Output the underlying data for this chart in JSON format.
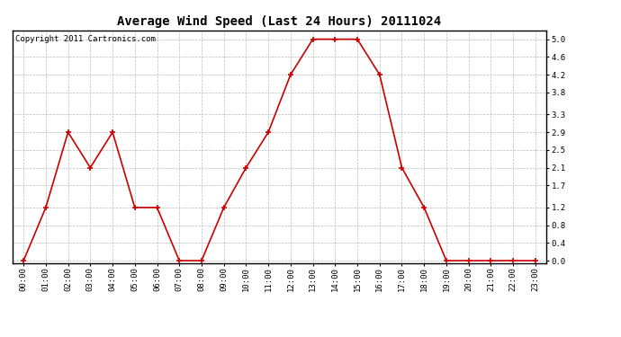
{
  "title": "Average Wind Speed (Last 24 Hours) 20111024",
  "copyright_text": "Copyright 2011 Cartronics.com",
  "x_labels": [
    "00:00",
    "01:00",
    "02:00",
    "03:00",
    "04:00",
    "05:00",
    "06:00",
    "07:00",
    "08:00",
    "09:00",
    "10:00",
    "11:00",
    "12:00",
    "13:00",
    "14:00",
    "15:00",
    "16:00",
    "17:00",
    "18:00",
    "19:00",
    "20:00",
    "21:00",
    "22:00",
    "23:00"
  ],
  "y_values": [
    0.0,
    1.2,
    2.9,
    2.1,
    2.9,
    1.2,
    1.2,
    0.0,
    0.0,
    1.2,
    2.1,
    2.9,
    4.2,
    5.0,
    5.0,
    5.0,
    4.2,
    2.1,
    1.2,
    0.0,
    0.0,
    0.0,
    0.0,
    0.0
  ],
  "y_ticks": [
    0.0,
    0.4,
    0.8,
    1.2,
    1.7,
    2.1,
    2.5,
    2.9,
    3.3,
    3.8,
    4.2,
    4.6,
    5.0
  ],
  "ylim": [
    -0.05,
    5.2
  ],
  "line_color": "#cc0000",
  "marker_color": "#cc0000",
  "bg_color": "#ffffff",
  "plot_bg_color": "#ffffff",
  "grid_color": "#bbbbbb",
  "title_fontsize": 10,
  "copyright_fontsize": 6.5,
  "tick_fontsize": 6.5,
  "y_tick_fontsize": 6.5
}
